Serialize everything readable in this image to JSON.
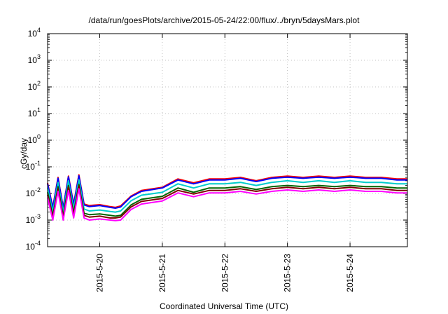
{
  "chart_data": {
    "type": "line",
    "title": "/data/run/goesPlots/archive/2015-05-24/22:00/flux/../bryn/5daysMars.plot",
    "xlabel": "Coordinated Universal Time (UTC)",
    "ylabel": "cGy/day",
    "y_scale": "log",
    "ylim": [
      0.0001,
      10000
    ],
    "y_ticks": [
      {
        "value": 0.0001,
        "base": "10",
        "exp": "-4"
      },
      {
        "value": 0.001,
        "base": "10",
        "exp": "-3"
      },
      {
        "value": 0.01,
        "base": "10",
        "exp": "-2"
      },
      {
        "value": 0.1,
        "base": "10",
        "exp": "-1"
      },
      {
        "value": 1,
        "base": "10",
        "exp": "0"
      },
      {
        "value": 10,
        "base": "10",
        "exp": "1"
      },
      {
        "value": 100,
        "base": "10",
        "exp": "2"
      },
      {
        "value": 1000,
        "base": "10",
        "exp": "3"
      },
      {
        "value": 10000,
        "base": "10",
        "exp": "4"
      }
    ],
    "xlim": [
      "2015-05-19 04:00",
      "2015-05-24 22:00"
    ],
    "x_ticks": [
      "2015-5-20",
      "2015-5-21",
      "2015-5-22",
      "2015-5-23",
      "2015-5-24"
    ],
    "grid": true,
    "x": [
      "2015-05-19 04:00",
      "2015-05-19 06:00",
      "2015-05-19 08:00",
      "2015-05-19 10:00",
      "2015-05-19 12:00",
      "2015-05-19 14:00",
      "2015-05-19 16:00",
      "2015-05-19 18:00",
      "2015-05-19 20:00",
      "2015-05-20 00:00",
      "2015-05-20 04:00",
      "2015-05-20 06:00",
      "2015-05-20 08:00",
      "2015-05-20 12:00",
      "2015-05-20 16:00",
      "2015-05-21 00:00",
      "2015-05-21 06:00",
      "2015-05-21 12:00",
      "2015-05-21 18:00",
      "2015-05-22 00:00",
      "2015-05-22 06:00",
      "2015-05-22 12:00",
      "2015-05-22 18:00",
      "2015-05-23 00:00",
      "2015-05-23 06:00",
      "2015-05-23 12:00",
      "2015-05-23 18:00",
      "2015-05-24 00:00",
      "2015-05-24 06:00",
      "2015-05-24 12:00",
      "2015-05-24 18:00",
      "2015-05-24 22:00"
    ],
    "series": [
      {
        "color": "#ff0000",
        "values": [
          0.025,
          0.003,
          0.04,
          0.003,
          0.045,
          0.004,
          0.05,
          0.004,
          0.0035,
          0.0038,
          0.0032,
          0.003,
          0.0034,
          0.008,
          0.013,
          0.017,
          0.035,
          0.025,
          0.035,
          0.035,
          0.04,
          0.03,
          0.04,
          0.045,
          0.04,
          0.045,
          0.04,
          0.045,
          0.04,
          0.04,
          0.035,
          0.035
        ]
      },
      {
        "color": "#0000ff",
        "values": [
          0.023,
          0.0028,
          0.037,
          0.0028,
          0.042,
          0.0037,
          0.046,
          0.0037,
          0.0032,
          0.0035,
          0.003,
          0.0028,
          0.0031,
          0.0075,
          0.012,
          0.016,
          0.032,
          0.023,
          0.032,
          0.032,
          0.037,
          0.028,
          0.037,
          0.041,
          0.037,
          0.041,
          0.037,
          0.041,
          0.037,
          0.037,
          0.032,
          0.032
        ]
      },
      {
        "color": "#00cccc",
        "values": [
          0.016,
          0.002,
          0.026,
          0.002,
          0.03,
          0.0026,
          0.033,
          0.0026,
          0.0022,
          0.0024,
          0.0021,
          0.002,
          0.0022,
          0.0053,
          0.0086,
          0.011,
          0.023,
          0.016,
          0.023,
          0.023,
          0.026,
          0.02,
          0.026,
          0.03,
          0.026,
          0.03,
          0.026,
          0.03,
          0.026,
          0.026,
          0.023,
          0.023
        ]
      },
      {
        "color": "#006400",
        "values": [
          0.011,
          0.0014,
          0.018,
          0.0014,
          0.02,
          0.0018,
          0.022,
          0.0018,
          0.0016,
          0.0017,
          0.0015,
          0.0014,
          0.0015,
          0.0037,
          0.006,
          0.0078,
          0.016,
          0.011,
          0.016,
          0.016,
          0.018,
          0.014,
          0.018,
          0.02,
          0.018,
          0.02,
          0.018,
          0.02,
          0.018,
          0.018,
          0.016,
          0.016
        ]
      },
      {
        "color": "#800000",
        "values": [
          0.009,
          0.0012,
          0.015,
          0.0012,
          0.017,
          0.0015,
          0.019,
          0.0015,
          0.0013,
          0.0014,
          0.0012,
          0.0012,
          0.0013,
          0.0031,
          0.005,
          0.0065,
          0.013,
          0.0095,
          0.013,
          0.013,
          0.015,
          0.012,
          0.015,
          0.017,
          0.015,
          0.017,
          0.015,
          0.017,
          0.015,
          0.015,
          0.013,
          0.013
        ]
      },
      {
        "color": "#ff00ff",
        "values": [
          0.007,
          0.001,
          0.012,
          0.001,
          0.013,
          0.0012,
          0.015,
          0.0012,
          0.001,
          0.0011,
          0.001,
          0.00095,
          0.001,
          0.0025,
          0.004,
          0.0052,
          0.0105,
          0.0075,
          0.0105,
          0.0105,
          0.012,
          0.0095,
          0.012,
          0.0135,
          0.012,
          0.0135,
          0.012,
          0.0135,
          0.012,
          0.012,
          0.0105,
          0.0105
        ]
      }
    ]
  }
}
